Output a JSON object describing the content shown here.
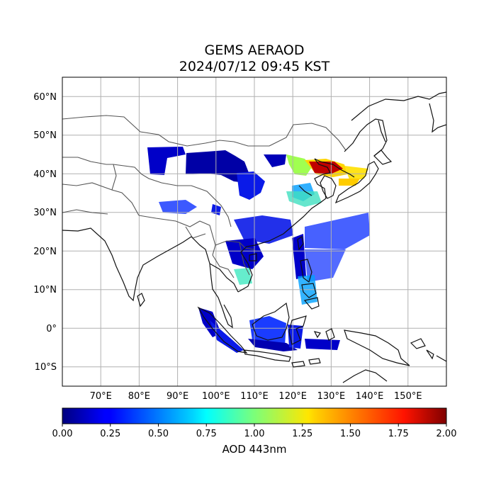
{
  "title": {
    "line1": "GEMS AERAOD",
    "line2": "2024/07/12 09:45 KST"
  },
  "map": {
    "lon_range": [
      60,
      160
    ],
    "lat_range": [
      -15,
      65
    ],
    "lon_ticks": [
      "70°E",
      "80°E",
      "90°E",
      "100°E",
      "110°E",
      "120°E",
      "130°E",
      "140°E",
      "150°E"
    ],
    "lat_ticks": [
      "60°N",
      "50°N",
      "40°N",
      "30°N",
      "20°N",
      "10°N",
      "0°",
      "10°S"
    ],
    "gridlines": true
  },
  "colorbar": {
    "label": "AOD 443nm",
    "ticks": [
      "0.00",
      "0.25",
      "0.50",
      "0.75",
      "1.00",
      "1.25",
      "1.50",
      "1.75",
      "2.00"
    ],
    "colormap": "jet",
    "range": [
      0,
      2
    ]
  }
}
